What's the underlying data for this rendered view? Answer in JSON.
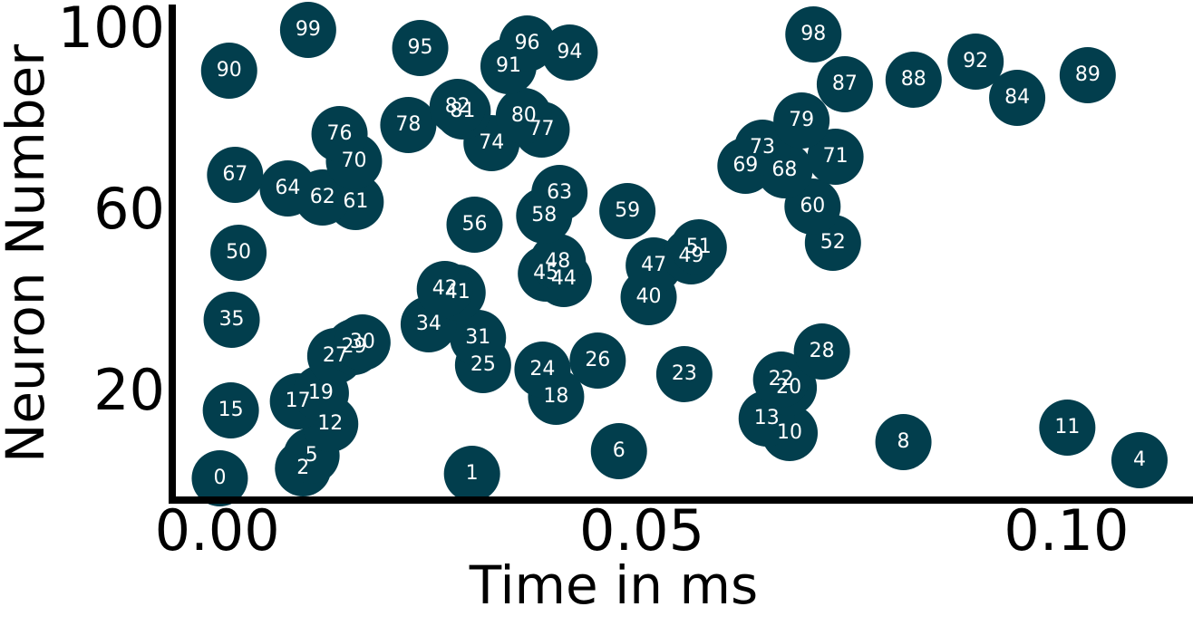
{
  "chart_data": {
    "type": "scatter",
    "x_label": "Time in ms",
    "y_label": "Neuron Number",
    "xlim": [
      -0.0053,
      0.1149
    ],
    "ylim": [
      -3.4,
      106
    ],
    "xticks": [
      {
        "value": 0,
        "label": "0.00"
      },
      {
        "value": 0.05,
        "label": "0.05"
      },
      {
        "value": 0.1,
        "label": "0.10"
      }
    ],
    "yticks": [
      20,
      60,
      100
    ],
    "series": [
      {
        "color": "#023e4d",
        "point_labels": [
          "0",
          "1",
          "2",
          "4",
          "5",
          "6",
          "8",
          "10",
          "11",
          "12",
          "13",
          "15",
          "17",
          "18",
          "19",
          "20",
          "22",
          "23",
          "24",
          "25",
          "26",
          "27",
          "28",
          "29",
          "30",
          "31",
          "34",
          "35",
          "40",
          "41",
          "42",
          "44",
          "45",
          "47",
          "48",
          "49",
          "50",
          "51",
          "52",
          "56",
          "58",
          "59",
          "60",
          "61",
          "62",
          "63",
          "64",
          "67",
          "68",
          "69",
          "70",
          "71",
          "73",
          "74",
          "76",
          "77",
          "78",
          "79",
          "80",
          "81",
          "82",
          "84",
          "87",
          "88",
          "89",
          "90",
          "91",
          "92",
          "94",
          "95",
          "96",
          "98",
          "99"
        ],
        "x": [
          0.0003,
          0.03,
          0.0101,
          0.1086,
          0.0111,
          0.0473,
          0.0808,
          0.0674,
          0.1001,
          0.0133,
          0.0647,
          0.0016,
          0.0095,
          0.0399,
          0.0122,
          0.0673,
          0.0664,
          0.055,
          0.0383,
          0.0313,
          0.0448,
          0.0139,
          0.0712,
          0.0161,
          0.0171,
          0.0307,
          0.0249,
          0.0017,
          0.0508,
          0.0283,
          0.0268,
          0.0408,
          0.0387,
          0.0514,
          0.0401,
          0.0558,
          0.0025,
          0.0567,
          0.0725,
          0.0303,
          0.0385,
          0.0483,
          0.0701,
          0.0163,
          0.0124,
          0.0403,
          0.0083,
          0.0021,
          0.0668,
          0.0622,
          0.0161,
          0.0728,
          0.0642,
          0.0323,
          0.0144,
          0.0382,
          0.0225,
          0.0688,
          0.0361,
          0.0289,
          0.0283,
          0.0942,
          0.0739,
          0.082,
          0.1025,
          0.0014,
          0.0343,
          0.0893,
          0.0415,
          0.0239,
          0.0365,
          0.0702,
          0.0107
        ],
        "values": [
          1.4,
          2.4,
          3.6,
          5.4,
          6.4,
          7.4,
          9.4,
          11.4,
          12.6,
          13.4,
          14.6,
          16.4,
          18.4,
          19.4,
          20.2,
          21.4,
          23.2,
          24.4,
          25.4,
          26.4,
          27.4,
          28.4,
          29.4,
          30.4,
          31.4,
          32.4,
          35.4,
          36.4,
          41.4,
          42.4,
          43.2,
          45.4,
          46.6,
          48.4,
          49.2,
          50.4,
          51.2,
          52.4,
          53.4,
          57.4,
          59.4,
          60.4,
          61.4,
          62.4,
          63.4,
          64.4,
          65.4,
          68.4,
          69.4,
          70.4,
          71.4,
          72.4,
          74.4,
          75.4,
          77.4,
          78.4,
          79.4,
          80.4,
          81.4,
          82.4,
          83.4,
          85.4,
          88.4,
          89.4,
          90.4,
          91.4,
          92.4,
          93.4,
          95.4,
          96.4,
          97.4,
          99.4,
          100.4
        ]
      }
    ]
  }
}
